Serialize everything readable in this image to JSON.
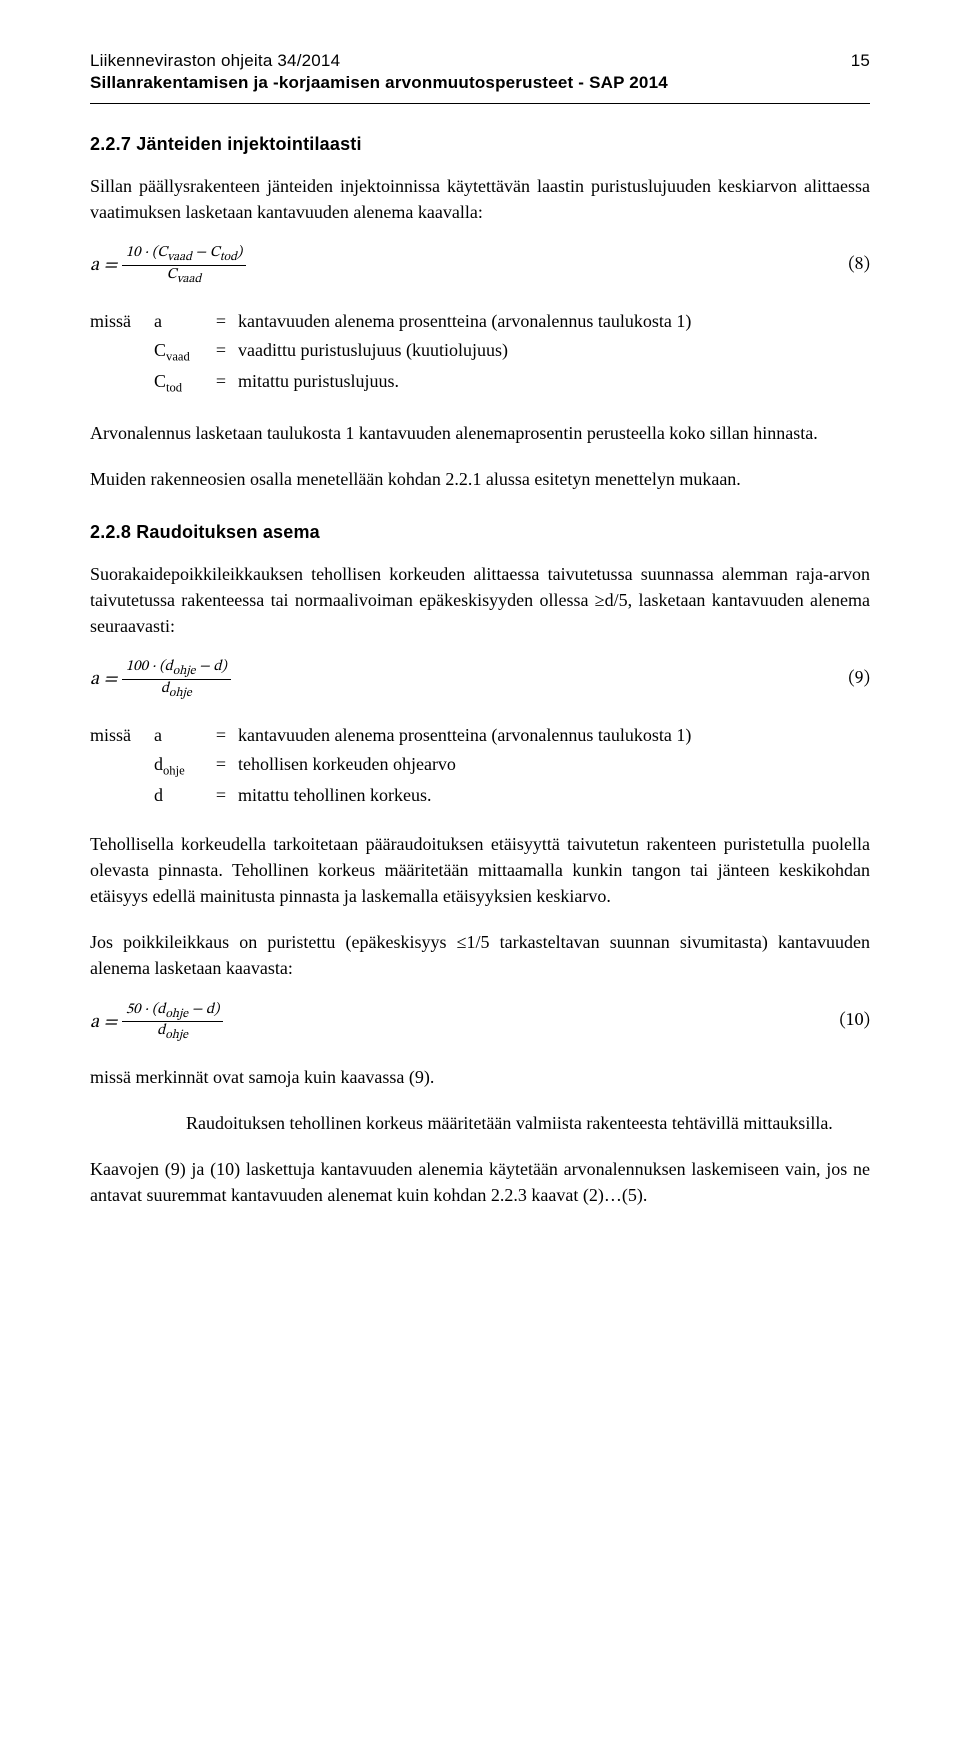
{
  "header": {
    "series": "Liikenneviraston ohjeita 34/2014",
    "page_number": "15",
    "subtitle": "Sillanrakentamisen ja -korjaamisen arvonmuutosperusteet - SAP 2014"
  },
  "section_227": {
    "heading": "2.2.7  Jänteiden injektointilaasti",
    "para1": "Sillan päällysrakenteen jänteiden injektoinnissa käytettävän laastin puristuslujuuden keskiarvon alittaessa vaatimuksen lasketaan kantavuuden alenema kaavalla:",
    "eq8_num": "(8)",
    "defs": {
      "label": "missä",
      "r1_sym": "a",
      "r1_eq": "=",
      "r1_desc": "kantavuuden alenema prosentteina (arvonalennus taulukosta 1)",
      "r2_sym_base": "C",
      "r2_sym_sub": "vaad",
      "r2_eq": "=",
      "r2_desc": "vaadittu puristuslujuus (kuutiolujuus)",
      "r3_sym_base": "C",
      "r3_sym_sub": "tod",
      "r3_eq": "=",
      "r3_desc": "mitattu puristuslujuus."
    },
    "para2": "Arvonalennus lasketaan taulukosta 1 kantavuuden alenemaprosentin perusteella koko sillan hinnasta.",
    "para3": "Muiden rakenneosien osalla menetellään kohdan 2.2.1 alussa esitetyn menettelyn mukaan."
  },
  "section_228": {
    "heading": "2.2.8  Raudoituksen asema",
    "para1": "Suorakaidepoikkileikkauksen tehollisen korkeuden alittaessa taivutetussa suunnassa alemman raja-arvon taivutetussa rakenteessa tai normaalivoiman epäkeskisyyden ollessa ≥d/5, lasketaan kantavuuden alenema seuraavasti:",
    "eq9_num": "(9)",
    "defs": {
      "label": "missä",
      "r1_sym": "a",
      "r1_eq": "=",
      "r1_desc": "kantavuuden alenema prosentteina (arvonalennus taulukosta 1)",
      "r2_sym_base": "d",
      "r2_sym_sub": "ohje",
      "r2_eq": "=",
      "r2_desc": "tehollisen korkeuden ohjearvo",
      "r3_sym": "d",
      "r3_eq": "=",
      "r3_desc": "mitattu tehollinen korkeus."
    },
    "para2": "Tehollisella korkeudella tarkoitetaan pääraudoituksen etäisyyttä taivutetun rakenteen puristetulla puolella olevasta pinnasta. Tehollinen korkeus määritetään mittaamalla kunkin tangon tai jänteen keskikohdan etäisyys edellä mainitusta pinnasta ja laskemalla etäisyyksien keskiarvo.",
    "para3": "Jos poikkileikkaus on puristettu (epäkeskisyys ≤1/5 tarkasteltavan suunnan sivumitasta) kantavuuden alenema lasketaan kaavasta:",
    "eq10_num": "(10)",
    "para4": "missä merkinnät ovat samoja kuin kaavassa (9).",
    "para5_indent": "Raudoituksen tehollinen korkeus määritetään valmiista rakenteesta tehtävillä mittauksilla.",
    "para6": "Kaavojen (9) ja (10) laskettuja kantavuuden alenemia käytetään arvonalennuksen laskemiseen vain, jos ne antavat suuremmat kantavuuden alenemat kuin kohdan 2.2.3 kaavat (2)…(5)."
  }
}
